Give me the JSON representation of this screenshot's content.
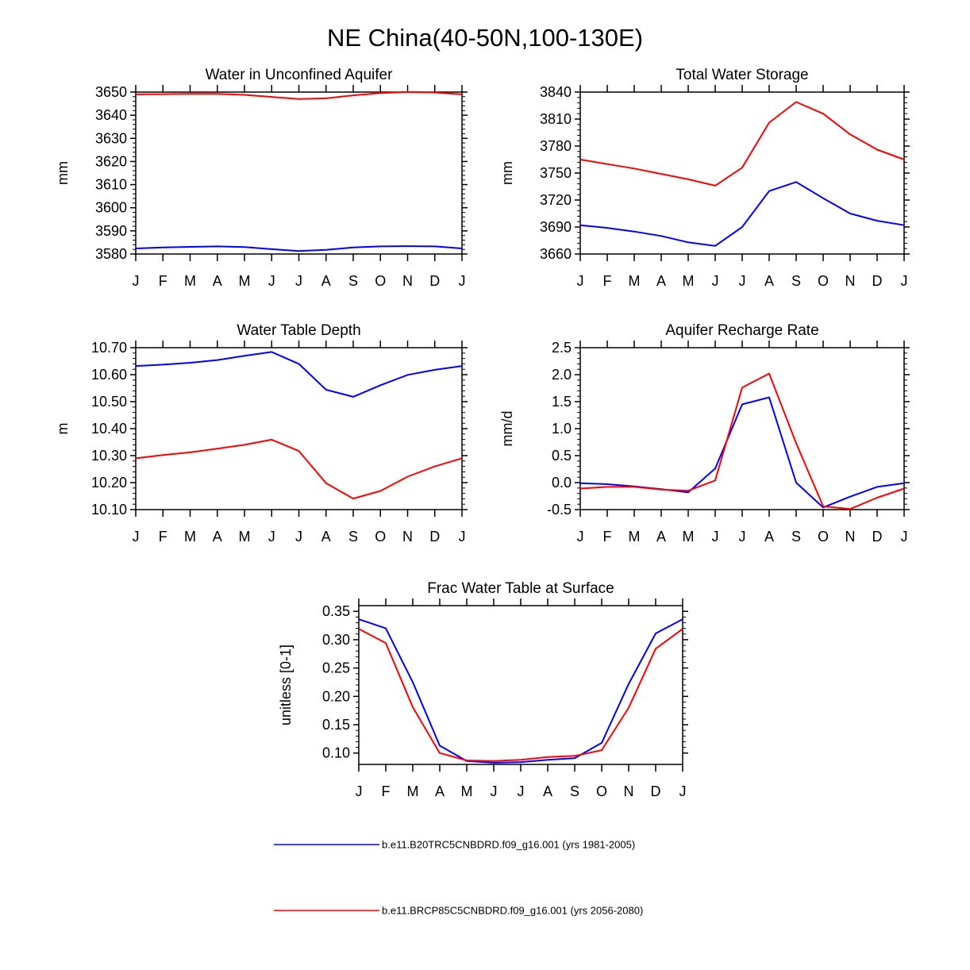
{
  "figure": {
    "title": "NE China(40-50N,100-130E)",
    "month_labels": [
      "J",
      "F",
      "M",
      "A",
      "M",
      "J",
      "J",
      "A",
      "S",
      "O",
      "N",
      "D",
      "J"
    ],
    "series_names": [
      "b.e11.B20TRC5CNBDRD.f09_g16.001 (yrs 1981-2005)",
      "b.e11.BRCP85C5CNBDRD.f09_g16.001 (yrs 2056-2080)"
    ],
    "series_colors": [
      "#0000ff",
      "#ff0000"
    ]
  },
  "chart_data": [
    {
      "type": "line",
      "title": "Water in Unconfined Aquifer",
      "ylabel": "mm",
      "ylim": [
        3580,
        3650
      ],
      "yticks": [
        3580,
        3590,
        3600,
        3610,
        3620,
        3630,
        3640,
        3650
      ],
      "ytick_labels": [
        "3580",
        "3590",
        "3600",
        "3610",
        "3620",
        "3630",
        "3640",
        "3650"
      ],
      "ytick_decimals": 0,
      "xticklabels": [
        "J",
        "F",
        "M",
        "A",
        "M",
        "J",
        "J",
        "A",
        "S",
        "O",
        "N",
        "D",
        "J"
      ],
      "series": [
        {
          "name": "b.e11.B20TRC5CNBDRD.f09_g16.001 (yrs 1981-2005)",
          "color": "#0000ff",
          "values": [
            3582.4,
            3582.8,
            3583.1,
            3583.3,
            3583.0,
            3582.1,
            3581.3,
            3581.8,
            3582.8,
            3583.3,
            3583.4,
            3583.3,
            3582.4
          ]
        },
        {
          "name": "b.e11.BRCP85C5CNBDRD.f09_g16.001 (yrs 2056-2080)",
          "color": "#ff0000",
          "values": [
            3649.0,
            3649.1,
            3649.2,
            3649.2,
            3648.8,
            3647.9,
            3647.0,
            3647.3,
            3648.6,
            3649.6,
            3650.0,
            3649.8,
            3649.0
          ]
        }
      ]
    },
    {
      "type": "line",
      "title": "Total Water Storage",
      "ylabel": "mm",
      "ylim": [
        3660,
        3840
      ],
      "yticks": [
        3660,
        3690,
        3720,
        3750,
        3780,
        3810,
        3840
      ],
      "ytick_labels": [
        "3660",
        "3690",
        "3720",
        "3750",
        "3780",
        "3810",
        "3840"
      ],
      "ytick_decimals": 0,
      "xticklabels": [
        "J",
        "F",
        "M",
        "A",
        "M",
        "J",
        "J",
        "A",
        "S",
        "O",
        "N",
        "D",
        "J"
      ],
      "series": [
        {
          "name": "b.e11.B20TRC5CNBDRD.f09_g16.001 (yrs 1981-2005)",
          "color": "#0000ff",
          "values": [
            3692,
            3689,
            3685,
            3680,
            3673,
            3669,
            3690,
            3730,
            3740,
            3722,
            3705,
            3697,
            3692
          ]
        },
        {
          "name": "b.e11.BRCP85C5CNBDRD.f09_g16.001 (yrs 2056-2080)",
          "color": "#ff0000",
          "values": [
            3765,
            3760,
            3755,
            3749,
            3743,
            3736,
            3756,
            3806,
            3829,
            3816,
            3793,
            3776,
            3765
          ]
        }
      ]
    },
    {
      "type": "line",
      "title": "Water Table Depth",
      "ylabel": "m",
      "ylim": [
        10.1,
        10.7
      ],
      "yticks": [
        10.1,
        10.2,
        10.3,
        10.4,
        10.5,
        10.6,
        10.7
      ],
      "ytick_labels": [
        "10.10",
        "10.20",
        "10.30",
        "10.40",
        "10.50",
        "10.60",
        "10.70"
      ],
      "ytick_decimals": 2,
      "xticklabels": [
        "J",
        "F",
        "M",
        "A",
        "M",
        "J",
        "J",
        "A",
        "S",
        "O",
        "N",
        "D",
        "J"
      ],
      "series": [
        {
          "name": "b.e11.B20TRC5CNBDRD.f09_g16.001 (yrs 1981-2005)",
          "color": "#0000ff",
          "values": [
            10.632,
            10.637,
            10.644,
            10.654,
            10.67,
            10.684,
            10.64,
            10.544,
            10.518,
            10.561,
            10.599,
            10.618,
            10.632
          ]
        },
        {
          "name": "b.e11.BRCP85C5CNBDRD.f09_g16.001 (yrs 2056-2080)",
          "color": "#ff0000",
          "values": [
            10.29,
            10.302,
            10.312,
            10.326,
            10.34,
            10.359,
            10.317,
            10.198,
            10.141,
            10.169,
            10.222,
            10.26,
            10.29
          ]
        }
      ]
    },
    {
      "type": "line",
      "title": "Aquifer Recharge Rate",
      "ylabel": "mm/d",
      "ylim": [
        -0.5,
        2.5
      ],
      "yticks": [
        -0.5,
        0.0,
        0.5,
        1.0,
        1.5,
        2.0,
        2.5
      ],
      "ytick_labels": [
        "-0.5",
        "0.0",
        "0.5",
        "1.0",
        "1.5",
        "2.0",
        "2.5"
      ],
      "ytick_decimals": 1,
      "xticklabels": [
        "J",
        "F",
        "M",
        "A",
        "M",
        "J",
        "J",
        "A",
        "S",
        "O",
        "N",
        "D",
        "J"
      ],
      "series": [
        {
          "name": "b.e11.B20TRC5CNBDRD.f09_g16.001 (yrs 1981-2005)",
          "color": "#0000ff",
          "values": [
            -0.01,
            -0.03,
            -0.07,
            -0.12,
            -0.18,
            0.26,
            1.45,
            1.58,
            0.0,
            -0.46,
            -0.26,
            -0.08,
            -0.01
          ]
        },
        {
          "name": "b.e11.BRCP85C5CNBDRD.f09_g16.001 (yrs 2056-2080)",
          "color": "#ff0000",
          "values": [
            -0.11,
            -0.08,
            -0.08,
            -0.13,
            -0.15,
            0.04,
            1.76,
            2.02,
            0.73,
            -0.44,
            -0.49,
            -0.28,
            -0.11
          ]
        }
      ]
    },
    {
      "type": "line",
      "title": "Frac Water Table at Surface",
      "ylabel": "unitless [0-1]",
      "ylim": [
        0.08,
        0.36
      ],
      "yticks": [
        0.1,
        0.15,
        0.2,
        0.25,
        0.3,
        0.35
      ],
      "ytick_labels": [
        "0.10",
        "0.15",
        "0.20",
        "0.25",
        "0.30",
        "0.35"
      ],
      "ytick_decimals": 2,
      "xticklabels": [
        "J",
        "F",
        "M",
        "A",
        "M",
        "J",
        "J",
        "A",
        "S",
        "O",
        "N",
        "D",
        "J"
      ],
      "series": [
        {
          "name": "b.e11.B20TRC5CNBDRD.f09_g16.001 (yrs 1981-2005)",
          "color": "#0000ff",
          "values": [
            0.336,
            0.32,
            0.225,
            0.113,
            0.086,
            0.083,
            0.084,
            0.088,
            0.091,
            0.118,
            0.222,
            0.311,
            0.336
          ]
        },
        {
          "name": "b.e11.BRCP85C5CNBDRD.f09_g16.001 (yrs 2056-2080)",
          "color": "#ff0000",
          "values": [
            0.319,
            0.294,
            0.181,
            0.1,
            0.087,
            0.086,
            0.088,
            0.093,
            0.095,
            0.105,
            0.18,
            0.284,
            0.319
          ]
        }
      ]
    }
  ]
}
